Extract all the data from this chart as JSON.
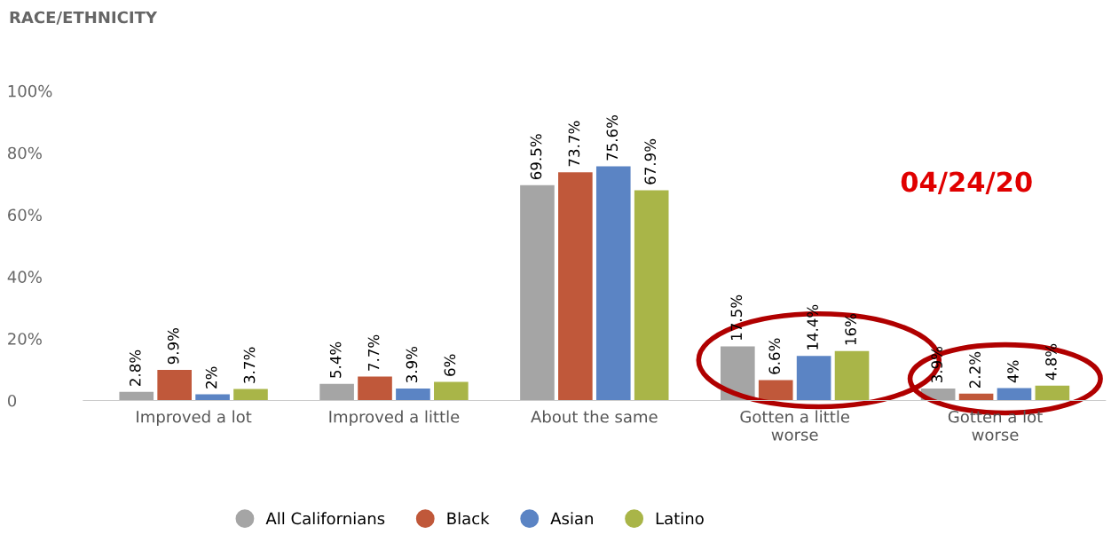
{
  "chart_data": {
    "type": "bar",
    "title": "RACE/ETHNICITY",
    "categories": [
      "Improved a lot",
      "Improved a little",
      "About the same",
      "Gotten a little\nworse",
      "Gotten a lot\nworse"
    ],
    "series": [
      {
        "name": "All Californians",
        "color": "#a5a5a5",
        "values": [
          2.8,
          5.4,
          69.5,
          17.5,
          3.9
        ]
      },
      {
        "name": "Black",
        "color": "#c0583a",
        "values": [
          9.9,
          7.7,
          73.7,
          6.6,
          2.2
        ]
      },
      {
        "name": "Asian",
        "color": "#5b84c4",
        "values": [
          2,
          3.9,
          75.6,
          14.4,
          4
        ]
      },
      {
        "name": "Latino",
        "color": "#a9b548",
        "values": [
          3.7,
          6,
          67.9,
          16,
          4.8
        ]
      }
    ],
    "value_labels": [
      [
        "2.8%",
        "5.4%",
        "69.5%",
        "17.5%",
        "3.9%"
      ],
      [
        "9.9%",
        "7.7%",
        "73.7%",
        "6.6%",
        "2.2%"
      ],
      [
        "2%",
        "3.9%",
        "75.6%",
        "14.4%",
        "4%"
      ],
      [
        "3.7%",
        "6%",
        "67.9%",
        "16%",
        "4.8%"
      ]
    ],
    "ylim": [
      0,
      100
    ],
    "yticks": [
      0,
      {
        "value": 20,
        "label": "20%"
      },
      {
        "value": 40,
        "label": "40%"
      },
      {
        "value": 60,
        "label": "60%"
      },
      {
        "value": 80,
        "label": "80%"
      },
      {
        "value": 100,
        "label": "100%"
      }
    ],
    "grid": false,
    "legend": "bottom",
    "annotations": [
      "04/24/20"
    ]
  }
}
